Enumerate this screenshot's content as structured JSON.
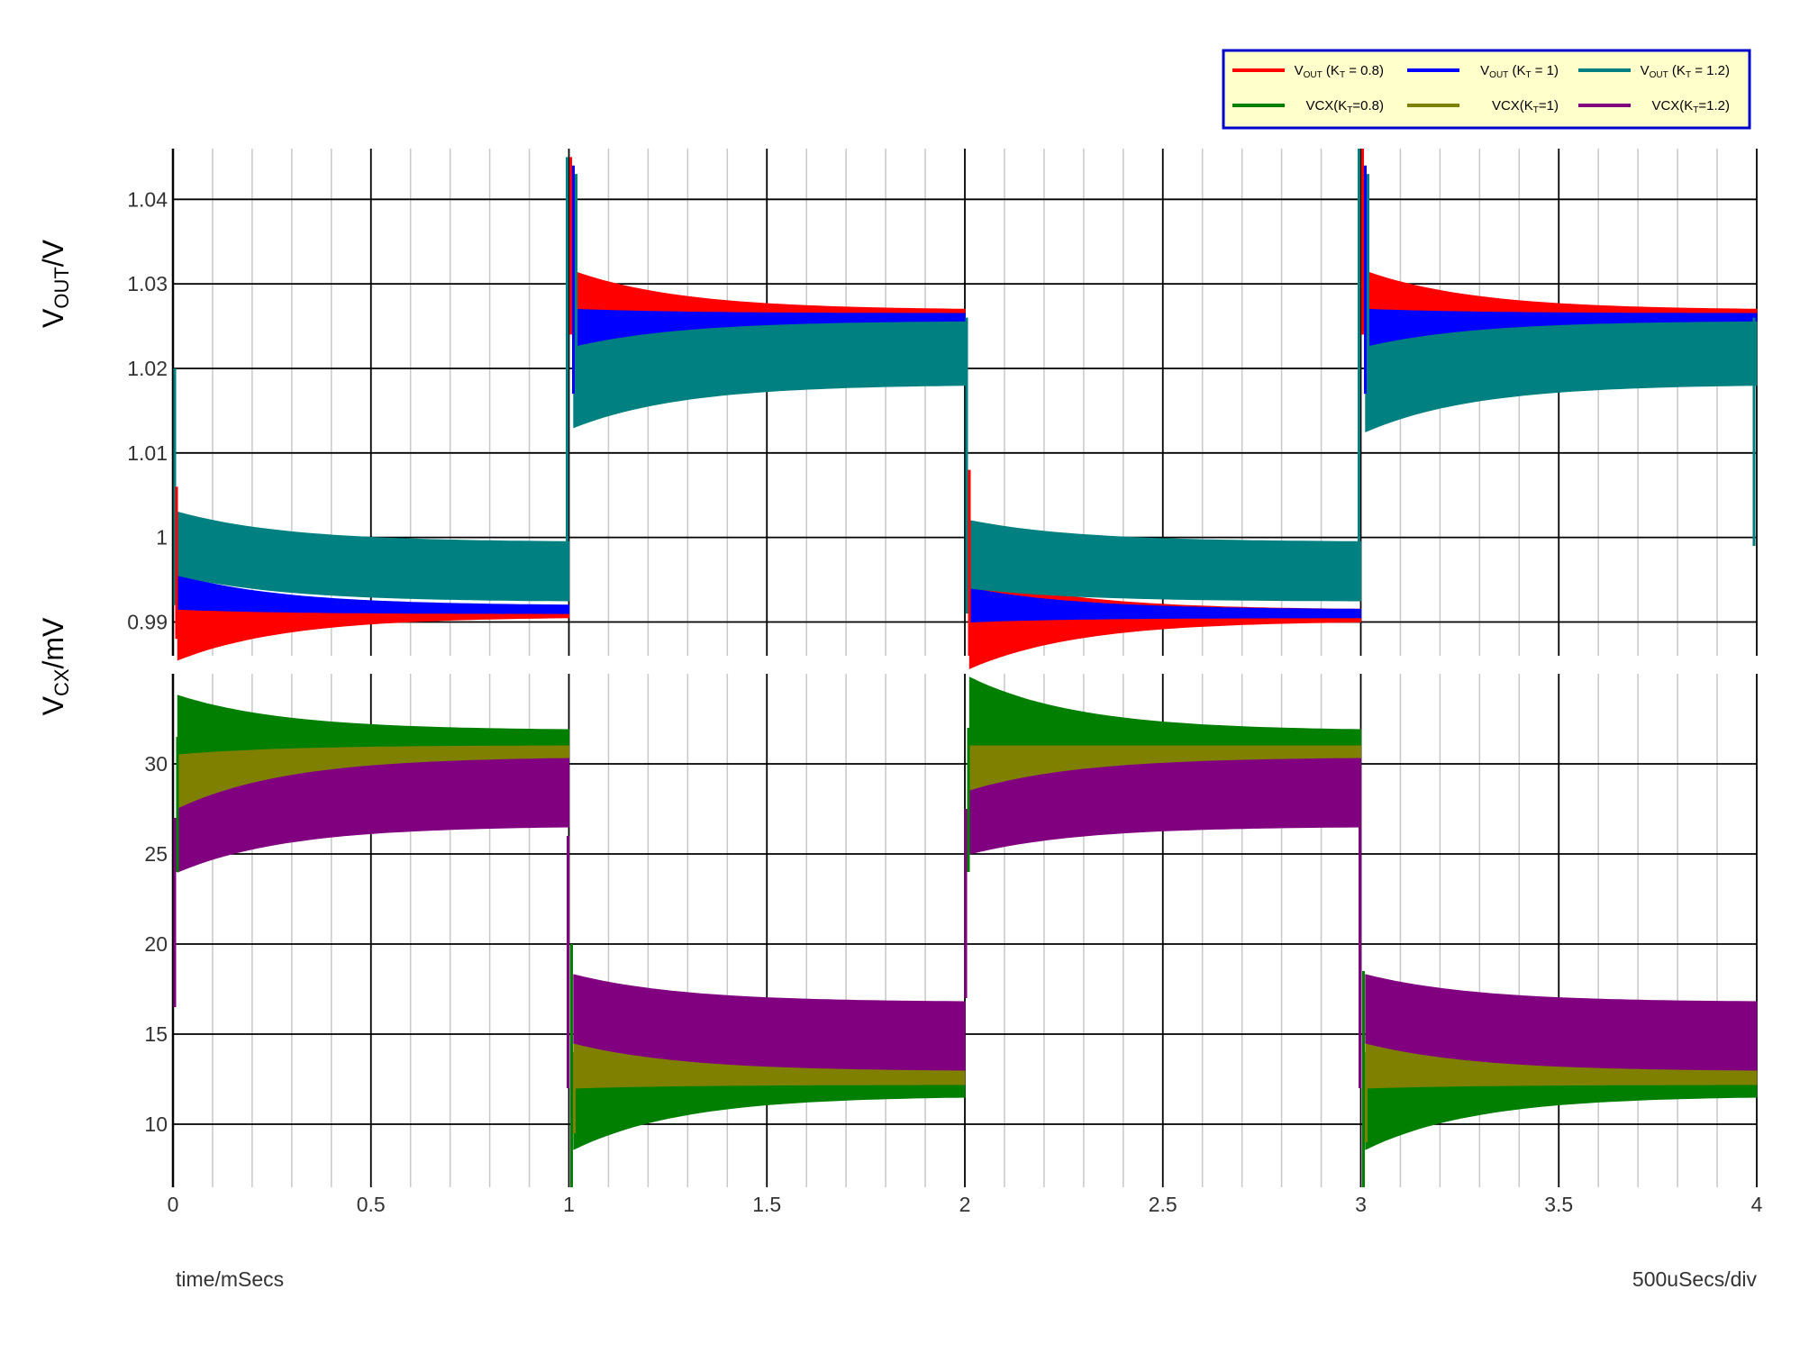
{
  "chart_data": {
    "type": "area",
    "xlabel": "time/mSecs",
    "x_scale_note": "500uSecs/div",
    "xlim": [
      0,
      4
    ],
    "x_ticks": [
      "0",
      "0.5",
      "1",
      "1.5",
      "2",
      "2.5",
      "3",
      "3.5",
      "4"
    ],
    "panels": [
      {
        "id": "vout",
        "ylabel": {
          "main": "V",
          "sub": "OUT",
          "suffix": "/V"
        },
        "ylim": [
          0.986,
          1.046
        ],
        "y_ticks": [
          "0.99",
          "1",
          "1.01",
          "1.02",
          "1.03",
          "1.04"
        ],
        "series": [
          {
            "name": "VOUT (KT = 0.8)",
            "color": "#ff0000",
            "envelope": [
              {
                "x0": 0.0,
                "x1": 1.0,
                "upper": [
                  0.9955,
                  0.9915
                ],
                "lower": [
                  0.9855,
                  0.9905
                ]
              },
              {
                "x0": 1.0,
                "x1": 2.0,
                "upper": [
                  1.0315,
                  1.027
                ],
                "lower": [
                  1.0245,
                  1.0265
                ]
              },
              {
                "x0": 2.0,
                "x1": 3.0,
                "upper": [
                  0.9955,
                  0.9915
                ],
                "lower": [
                  0.9845,
                  0.99
                ]
              },
              {
                "x0": 3.0,
                "x1": 4.0,
                "upper": [
                  1.0315,
                  1.027
                ],
                "lower": [
                  1.0245,
                  1.0265
                ]
              }
            ]
          },
          {
            "name": "VOUT (KT = 1)",
            "color": "#0000ff",
            "envelope": [
              {
                "x0": 0.0,
                "x1": 1.0,
                "upper": [
                  0.9955,
                  0.992
                ],
                "lower": [
                  0.9915,
                  0.991
                ]
              },
              {
                "x0": 1.0,
                "x1": 2.0,
                "upper": [
                  1.027,
                  1.0265
                ],
                "lower": [
                  1.0205,
                  1.0255
                ]
              },
              {
                "x0": 2.0,
                "x1": 3.0,
                "upper": [
                  0.994,
                  0.9915
                ],
                "lower": [
                  0.99,
                  0.9905
                ]
              },
              {
                "x0": 3.0,
                "x1": 4.0,
                "upper": [
                  1.027,
                  1.0265
                ],
                "lower": [
                  1.0205,
                  1.0255
                ]
              }
            ]
          },
          {
            "name": "VOUT (KT = 1.2)",
            "color": "#008080",
            "envelope": [
              {
                "x0": 0.0,
                "x1": 1.0,
                "upper": [
                  1.003,
                  0.9995
                ],
                "lower": [
                  0.9955,
                  0.9925
                ]
              },
              {
                "x0": 1.0,
                "x1": 2.0,
                "upper": [
                  1.0225,
                  1.0255
                ],
                "lower": [
                  1.013,
                  1.018
                ]
              },
              {
                "x0": 2.0,
                "x1": 3.0,
                "upper": [
                  1.002,
                  0.9995
                ],
                "lower": [
                  0.994,
                  0.9925
                ]
              },
              {
                "x0": 3.0,
                "x1": 4.0,
                "upper": [
                  1.0225,
                  1.0255
                ],
                "lower": [
                  1.0125,
                  1.018
                ]
              }
            ]
          }
        ]
      },
      {
        "id": "vcx",
        "ylabel": {
          "main": "V",
          "sub": "CX",
          "suffix": "/mV"
        },
        "ylim": [
          6.5,
          35.0
        ],
        "y_ticks": [
          "10",
          "15",
          "20",
          "25",
          "30"
        ],
        "series": [
          {
            "name": "VCX(KT=0.8)",
            "color": "#007f00",
            "envelope": [
              {
                "x0": 0.0,
                "x1": 1.0,
                "upper": [
                  33.8,
                  31.9
                ],
                "lower": [
                  30.5,
                  31.0
                ]
              },
              {
                "x0": 1.0,
                "x1": 2.0,
                "upper": [
                  12.5,
                  12.2
                ],
                "lower": [
                  8.6,
                  11.5
                ]
              },
              {
                "x0": 2.0,
                "x1": 3.0,
                "upper": [
                  34.8,
                  31.9
                ],
                "lower": [
                  30.8,
                  31.0
                ]
              },
              {
                "x0": 3.0,
                "x1": 4.0,
                "upper": [
                  12.5,
                  12.2
                ],
                "lower": [
                  8.6,
                  11.5
                ]
              }
            ]
          },
          {
            "name": "VCX(KT=1)",
            "color": "#808000",
            "envelope": [
              {
                "x0": 0.0,
                "x1": 1.0,
                "upper": [
                  30.5,
                  31.0
                ],
                "lower": [
                  26.5,
                  30.0
                ]
              },
              {
                "x0": 1.0,
                "x1": 2.0,
                "upper": [
                  14.5,
                  13.0
                ],
                "lower": [
                  12.0,
                  12.2
                ]
              },
              {
                "x0": 2.0,
                "x1": 3.0,
                "upper": [
                  31.0,
                  31.0
                ],
                "lower": [
                  28.5,
                  30.0
                ]
              },
              {
                "x0": 3.0,
                "x1": 4.0,
                "upper": [
                  14.5,
                  13.0
                ],
                "lower": [
                  12.0,
                  12.2
                ]
              }
            ]
          },
          {
            "name": "VCX(KT=1.2)",
            "color": "#800080",
            "envelope": [
              {
                "x0": 0.0,
                "x1": 1.0,
                "upper": [
                  27.5,
                  30.3
                ],
                "lower": [
                  24.0,
                  26.5
                ]
              },
              {
                "x0": 1.0,
                "x1": 2.0,
                "upper": [
                  18.3,
                  16.8
                ],
                "lower": [
                  14.5,
                  13.0
                ]
              },
              {
                "x0": 2.0,
                "x1": 3.0,
                "upper": [
                  28.5,
                  30.3
                ],
                "lower": [
                  25.0,
                  26.5
                ]
              },
              {
                "x0": 3.0,
                "x1": 4.0,
                "upper": [
                  18.3,
                  16.8
                ],
                "lower": [
                  14.5,
                  13.0
                ]
              }
            ]
          }
        ]
      }
    ],
    "legend": {
      "position": "top-right",
      "background": "#ffffcc",
      "border": "#0000cc",
      "entries": [
        {
          "main": "V",
          "sub": "OUT",
          "mid": " (K",
          "sub2": "T",
          "tail": " = 0.8)",
          "color": "#ff0000"
        },
        {
          "main": "V",
          "sub": "OUT",
          "mid": " (K",
          "sub2": "T",
          "tail": " = 1)",
          "color": "#0000ff"
        },
        {
          "main": "V",
          "sub": "OUT",
          "mid": " (K",
          "sub2": "T",
          "tail": " = 1.2)",
          "color": "#008080"
        },
        {
          "main": "VCX(K",
          "sub": "T",
          "mid": "=0.8)",
          "sub2": "",
          "tail": "",
          "color": "#007f00"
        },
        {
          "main": "VCX(K",
          "sub": "T",
          "mid": "=1)",
          "sub2": "",
          "tail": "",
          "color": "#808000"
        },
        {
          "main": "VCX(K",
          "sub": "T",
          "mid": "=1.2)",
          "sub2": "",
          "tail": "",
          "color": "#800080"
        }
      ]
    },
    "grid": true
  }
}
